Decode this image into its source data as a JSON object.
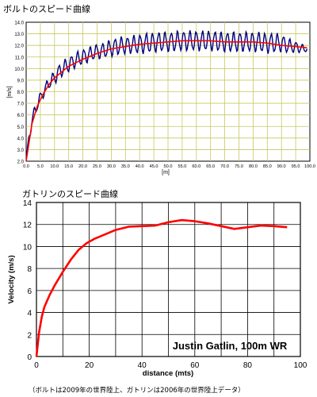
{
  "headings": {
    "top": "ボルトのスピード曲線",
    "bottom": "ガトリンのスピード曲線"
  },
  "footnote": "（ボルトは2009年の世界陸上、ガトリンは2006年の世界陸上データ）",
  "colors": {
    "bolt_raw": "#000080",
    "bolt_smooth": "#ff0000",
    "bolt_grid": "#c8c860",
    "gatlin_line": "#ff0000"
  },
  "chart_data": [
    {
      "type": "line",
      "title": "",
      "xlabel": "[m]",
      "ylabel": "[m/s]",
      "xlim": [
        0,
        100
      ],
      "ylim": [
        2,
        14
      ],
      "xticks": [
        "0.0",
        "5.0",
        "10.0",
        "15.0",
        "20.0",
        "25.0",
        "30.0",
        "35.0",
        "40.0",
        "45.0",
        "50.0",
        "55.0",
        "60.0",
        "65.0",
        "70.0",
        "75.0",
        "80.0",
        "85.0",
        "90.0",
        "95.0",
        "100.0"
      ],
      "yticks": [
        "2.0",
        "3.0",
        "4.0",
        "5.0",
        "6.0",
        "7.0",
        "8.0",
        "9.0",
        "10.0",
        "11.0",
        "12.0",
        "13.0",
        "14.0"
      ],
      "grid": true,
      "series": [
        {
          "role": "raw",
          "x": [
            0,
            1,
            2,
            3,
            4,
            5,
            6,
            7,
            8,
            9,
            10,
            12,
            14,
            16,
            18,
            20,
            22,
            24,
            26,
            28,
            30,
            32,
            34,
            36,
            38,
            40,
            42,
            44,
            46,
            48,
            50,
            52,
            54,
            56,
            58,
            60,
            62,
            64,
            66,
            68,
            70,
            72,
            74,
            76,
            78,
            80,
            82,
            84,
            86,
            88,
            90,
            92,
            94,
            96,
            98,
            99
          ],
          "y": [
            2.2,
            4.0,
            5.5,
            6.2,
            7.0,
            7.4,
            8.0,
            8.3,
            8.8,
            8.9,
            9.3,
            9.8,
            10.2,
            10.5,
            10.8,
            11.0,
            11.2,
            11.4,
            11.5,
            11.6,
            11.8,
            11.9,
            12.0,
            12.0,
            12.1,
            12.1,
            12.2,
            12.2,
            12.3,
            12.3,
            12.3,
            12.3,
            12.4,
            12.4,
            12.4,
            12.4,
            12.4,
            12.4,
            12.4,
            12.3,
            12.3,
            12.3,
            12.3,
            12.3,
            12.3,
            12.3,
            12.3,
            12.2,
            12.2,
            12.2,
            12.2,
            12.0,
            11.9,
            11.8,
            11.7,
            11.7
          ],
          "oscillation_amplitude": [
            0,
            0.4,
            0.5,
            0.5,
            0.5,
            0.5,
            0.5,
            0.5,
            0.5,
            0.5,
            0.6,
            0.6,
            0.6,
            0.6,
            0.6,
            0.6,
            0.6,
            0.6,
            0.6,
            0.6,
            0.7,
            0.7,
            0.7,
            0.7,
            0.7,
            0.8,
            0.8,
            0.8,
            0.8,
            0.8,
            0.8,
            0.8,
            0.8,
            0.8,
            0.8,
            0.8,
            0.8,
            0.8,
            0.8,
            0.8,
            0.8,
            0.8,
            0.8,
            0.8,
            0.8,
            0.8,
            0.8,
            0.8,
            0.8,
            0.8,
            0.7,
            0.6,
            0.5,
            0.4,
            0.3,
            0.2
          ]
        },
        {
          "role": "smoothed",
          "x": [
            0,
            1,
            2,
            4,
            6,
            8,
            10,
            15,
            20,
            25,
            30,
            35,
            40,
            45,
            50,
            55,
            60,
            65,
            70,
            75,
            80,
            85,
            90,
            95,
            99
          ],
          "y": [
            2.0,
            3.6,
            5.2,
            6.8,
            7.8,
            8.6,
            9.2,
            10.2,
            10.8,
            11.3,
            11.7,
            11.9,
            12.1,
            12.2,
            12.3,
            12.4,
            12.4,
            12.4,
            12.3,
            12.3,
            12.3,
            12.2,
            12.0,
            11.9,
            11.8
          ]
        }
      ]
    },
    {
      "type": "line",
      "title": "",
      "annotation": "Justin Gatlin, 100m WR",
      "xlabel": "distance (mts)",
      "ylabel": "Velocity (m/s)",
      "xlim": [
        0,
        100
      ],
      "ylim": [
        0,
        14
      ],
      "xticks": [
        "0",
        "20",
        "40",
        "60",
        "80",
        "100"
      ],
      "yticks": [
        "0",
        "2",
        "4",
        "6",
        "8",
        "10",
        "12",
        "14"
      ],
      "grid": true,
      "series": [
        {
          "x": [
            0,
            1,
            2,
            3,
            5,
            7,
            10,
            13,
            16,
            19,
            22,
            26,
            30,
            35,
            40,
            45,
            50,
            55,
            60,
            65,
            70,
            75,
            80,
            85,
            90,
            95
          ],
          "y": [
            0,
            2.2,
            3.6,
            4.5,
            5.6,
            6.5,
            7.7,
            8.8,
            9.7,
            10.3,
            10.7,
            11.1,
            11.5,
            11.8,
            11.85,
            11.9,
            12.2,
            12.4,
            12.3,
            12.1,
            11.85,
            11.6,
            11.75,
            11.9,
            11.85,
            11.75
          ]
        }
      ]
    }
  ]
}
